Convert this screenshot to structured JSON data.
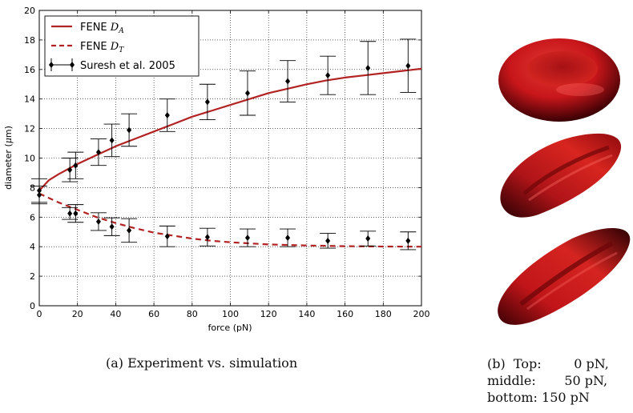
{
  "chart_data": {
    "type": "line",
    "xlabel": "force (pN)",
    "ylabel": "diameter (μm)",
    "xlim": [
      0,
      200
    ],
    "ylim": [
      0,
      20
    ],
    "xticks": [
      0,
      20,
      40,
      60,
      80,
      100,
      120,
      140,
      160,
      180,
      200
    ],
    "yticks": [
      0,
      2,
      4,
      6,
      8,
      10,
      12,
      14,
      16,
      18,
      20
    ],
    "grid": true,
    "legend_position": "top-left",
    "series": [
      {
        "name": "FENE D_A",
        "style": "solid",
        "color": "#b22222",
        "x": [
          0,
          5,
          10,
          20,
          30,
          40,
          50,
          60,
          70,
          80,
          90,
          100,
          110,
          120,
          130,
          140,
          150,
          160,
          170,
          180,
          190,
          200
        ],
        "y": [
          7.8,
          8.5,
          8.9,
          9.6,
          10.2,
          10.8,
          11.3,
          11.8,
          12.3,
          12.8,
          13.2,
          13.6,
          14.0,
          14.4,
          14.7,
          15.0,
          15.25,
          15.45,
          15.6,
          15.75,
          15.9,
          16.05
        ]
      },
      {
        "name": "FENE D_T",
        "style": "dashed",
        "color": "#b22222",
        "x": [
          0,
          10,
          20,
          30,
          40,
          50,
          60,
          70,
          80,
          90,
          100,
          120,
          140,
          160,
          180,
          200
        ],
        "y": [
          7.6,
          7.0,
          6.5,
          6.0,
          5.6,
          5.25,
          4.95,
          4.75,
          4.55,
          4.4,
          4.3,
          4.15,
          4.08,
          4.03,
          4.01,
          4.0
        ]
      },
      {
        "name": "Suresh et al. 2005",
        "style": "errorbar",
        "color": "#000000",
        "points": [
          {
            "x": 0,
            "y": 7.8,
            "err": 0.8
          },
          {
            "x": 16,
            "y": 9.2,
            "err": 0.8
          },
          {
            "x": 19,
            "y": 9.5,
            "err": 0.9
          },
          {
            "x": 31,
            "y": 10.4,
            "err": 0.9
          },
          {
            "x": 38,
            "y": 11.2,
            "err": 1.1
          },
          {
            "x": 47,
            "y": 11.9,
            "err": 1.1
          },
          {
            "x": 67,
            "y": 12.9,
            "err": 1.1
          },
          {
            "x": 88,
            "y": 13.8,
            "err": 1.2
          },
          {
            "x": 109,
            "y": 14.4,
            "err": 1.5
          },
          {
            "x": 130,
            "y": 15.2,
            "err": 1.4
          },
          {
            "x": 151,
            "y": 15.6,
            "err": 1.3
          },
          {
            "x": 172,
            "y": 16.1,
            "err": 1.8
          },
          {
            "x": 193,
            "y": 16.25,
            "err": 1.8
          },
          {
            "x": 0,
            "y": 7.5,
            "err": 0.6
          },
          {
            "x": 16,
            "y": 6.25,
            "err": 0.4
          },
          {
            "x": 19,
            "y": 6.25,
            "err": 0.6
          },
          {
            "x": 31,
            "y": 5.7,
            "err": 0.6
          },
          {
            "x": 38,
            "y": 5.35,
            "err": 0.6
          },
          {
            "x": 47,
            "y": 5.1,
            "err": 0.8
          },
          {
            "x": 67,
            "y": 4.7,
            "err": 0.7
          },
          {
            "x": 88,
            "y": 4.65,
            "err": 0.6
          },
          {
            "x": 109,
            "y": 4.6,
            "err": 0.6
          },
          {
            "x": 130,
            "y": 4.6,
            "err": 0.6
          },
          {
            "x": 151,
            "y": 4.4,
            "err": 0.5
          },
          {
            "x": 172,
            "y": 4.55,
            "err": 0.5
          },
          {
            "x": 193,
            "y": 4.4,
            "err": 0.6
          }
        ]
      }
    ]
  },
  "legend": {
    "entry_1_prefix": "FENE ",
    "entry_1_math": "D",
    "entry_1_sub": "A",
    "entry_2_prefix": "FENE ",
    "entry_2_math": "D",
    "entry_2_sub": "T",
    "entry_3": "Suresh et al. 2005"
  },
  "axis_labels": {
    "x": "force (pN)",
    "y_prefix": "diameter (",
    "y_mu": "μ",
    "y_suffix": "m)"
  },
  "captions": {
    "a": "(a) Experiment vs. simulation",
    "b_line1": "(b)  Top:        0 pN,",
    "b_line2": "middle:       50 pN,",
    "b_line3": "bottom: 150 pN"
  },
  "colors": {
    "cell_red": "#c8161a",
    "cell_dark": "#3a0004",
    "cell_highlight": "#ff6b63"
  }
}
